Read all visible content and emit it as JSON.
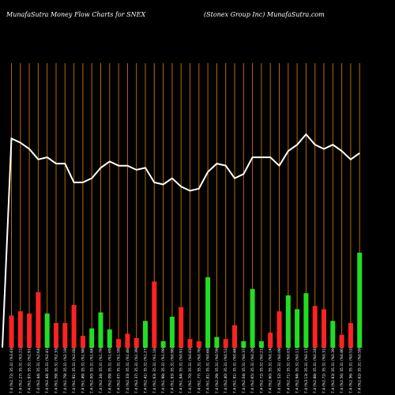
{
  "header": {
    "left": "MunafaSutra  Money Flow  Charts for SNEX",
    "right": "(Stonex Group Inc) MunafaSutra.com"
  },
  "chart_data": {
    "type": "bar",
    "title": "Money Flow Charts for SNEX",
    "colors": {
      "up": "#22dd22",
      "down": "#ff2222",
      "line": "#ffffff",
      "grid": "#b86a00"
    },
    "bars": [
      {
        "v": 30,
        "c": "down"
      },
      {
        "v": 34,
        "c": "down"
      },
      {
        "v": 32,
        "c": "down"
      },
      {
        "v": 52,
        "c": "down"
      },
      {
        "v": 32,
        "c": "up"
      },
      {
        "v": 23,
        "c": "down"
      },
      {
        "v": 23,
        "c": "down"
      },
      {
        "v": 40,
        "c": "down"
      },
      {
        "v": 11,
        "c": "down"
      },
      {
        "v": 18,
        "c": "up"
      },
      {
        "v": 33,
        "c": "up"
      },
      {
        "v": 17,
        "c": "up"
      },
      {
        "v": 8,
        "c": "down"
      },
      {
        "v": 13,
        "c": "down"
      },
      {
        "v": 9,
        "c": "down"
      },
      {
        "v": 25,
        "c": "up"
      },
      {
        "v": 62,
        "c": "down"
      },
      {
        "v": 6,
        "c": "up"
      },
      {
        "v": 29,
        "c": "up"
      },
      {
        "v": 38,
        "c": "down"
      },
      {
        "v": 8,
        "c": "down"
      },
      {
        "v": 6,
        "c": "down"
      },
      {
        "v": 66,
        "c": "up"
      },
      {
        "v": 10,
        "c": "up"
      },
      {
        "v": 8,
        "c": "down"
      },
      {
        "v": 21,
        "c": "down"
      },
      {
        "v": 6,
        "c": "up"
      },
      {
        "v": 55,
        "c": "up"
      },
      {
        "v": 6,
        "c": "up"
      },
      {
        "v": 14,
        "c": "down"
      },
      {
        "v": 34,
        "c": "down"
      },
      {
        "v": 49,
        "c": "up"
      },
      {
        "v": 36,
        "c": "up"
      },
      {
        "v": 51,
        "c": "up"
      },
      {
        "v": 39,
        "c": "down"
      },
      {
        "v": 36,
        "c": "down"
      },
      {
        "v": 25,
        "c": "up"
      },
      {
        "v": 12,
        "c": "down"
      },
      {
        "v": 23,
        "c": "down"
      },
      {
        "v": 89,
        "c": "up"
      }
    ],
    "line": [
      0,
      100,
      98,
      95,
      90,
      91,
      88,
      88,
      79,
      79,
      81,
      86,
      89,
      87,
      87,
      85,
      86,
      79,
      78,
      81,
      77,
      75,
      76,
      84,
      88,
      87,
      81,
      83,
      91,
      91,
      91,
      87,
      94,
      97,
      102,
      97,
      95,
      97,
      94,
      90,
      93
    ],
    "x_labels": [
      "7.4 (%2.72) 35.31 (%3.43)",
      "7.4 (%2.27) 35.31 (%3.21)",
      "7.4 (%1.97) 35.31 (%2.91)",
      "7.4 (%2.44) 35.31 (%2.64)",
      "7.4 (%2.44) 35.31 (%2.41)",
      "7.4 (%1.59) 35.31 (%2.33)",
      "7.4 (%1.79) 35.31 (%2.19)",
      "7.4 (%1.91) 35.31 (%2.08)",
      "7.4 (%1.49) 35.31 (%1.98)",
      "7.4 (%2.00) 35.31 (%1.84)",
      "7.4 (%2.34) 35.31 (%1.79)",
      "7.4 (%2.09) 35.31 (%1.69)",
      "7.4 (%2.07) 35.31 (%1.59)",
      "7.4 (%2.33) 35.31 (%1.48)",
      "7.4 (%2.37) 35.31 (%1.39)",
      "7.4 (%2.41) 35.31 (%1.27)",
      "7.4 (%1.63) 35.31 (%1.18)",
      "7.4 (%1.98) 35.31 (%1.09)",
      "7.4 (%1.93) 35.31 (%0.98)",
      "7.4 (%1.84) 35.31 (%0.91)",
      "7.4 (%1.70) 35.31 (%0.83)",
      "7.4 (%1.77) 35.31 (%0.76)",
      "7.4 (%1.81) 35.31 (%0.68)",
      "7.4 (%2.29) 35.31 (%0.59)",
      "7.4 (%2.40) 35.31 (%0.51)",
      "7.4 (%1.91) 35.31 (%0.44)",
      "7.4 (%2.04) 35.31 (%0.37)",
      "7.4 (%2.65) 35.31 (%0.29)",
      "7.4 (%2.72) 35.31 (%0.21)",
      "7.4 (%2.60) 35.31 (%0.14)",
      "7.4 (%2.52) 35.31 (%0.09)",
      "7.4 (%2.71) 35.31 (%0.03)",
      "7.4 (%2.94) 35.31 (%0.11)",
      "7.4 (%3.13) 35.31 (%0.17)",
      "7.4 (%2.88) 35.31 (%0.24)",
      "7.4 (%2.72) 35.31 (%0.31)",
      "7.4 (%2.83) 35.31 (%0.39)",
      "7.4 (%2.56) 35.31 (%0.46)",
      "7.4 (%2.36) 35.31 (%0.52)",
      "7.4 (%2.62) 35.31 (%0.59)"
    ],
    "grid": true
  }
}
